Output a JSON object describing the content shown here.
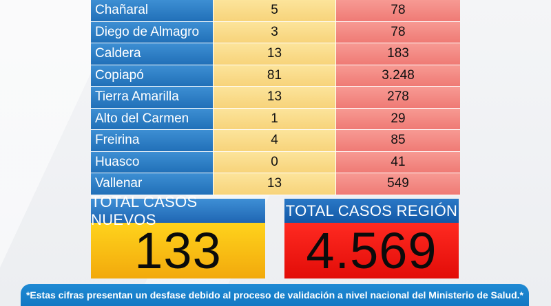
{
  "rows": [
    {
      "commune": "Chañaral",
      "new": "5",
      "total": "78"
    },
    {
      "commune": "Diego de Almagro",
      "new": "3",
      "total": "78"
    },
    {
      "commune": "Caldera",
      "new": "13",
      "total": "183"
    },
    {
      "commune": "Copiapó",
      "new": "81",
      "total": "3.248"
    },
    {
      "commune": "Tierra Amarilla",
      "new": "13",
      "total": "278"
    },
    {
      "commune": "Alto del Carmen",
      "new": "1",
      "total": "29"
    },
    {
      "commune": "Freirina",
      "new": "4",
      "total": "85"
    },
    {
      "commune": "Huasco",
      "new": "0",
      "total": "41"
    },
    {
      "commune": "Vallenar",
      "new": "13",
      "total": "549"
    }
  ],
  "totals": {
    "new_label": "TOTAL CASOS NUEVOS",
    "new_value": "133",
    "region_label": "TOTAL CASOS REGIÓN",
    "region_value": "4.569"
  },
  "footnote": "*Estas cifras presentan un desfase debido al proceso de validación a nivel nacional del Ministerio de Salud.*",
  "colors": {
    "name_column": "#2170b8",
    "new_column": "#f7d37a",
    "total_column": "#ef7a75",
    "new_box": "#f2a90c",
    "region_box": "#e20c08",
    "footnote_bar": "#1378c3"
  }
}
